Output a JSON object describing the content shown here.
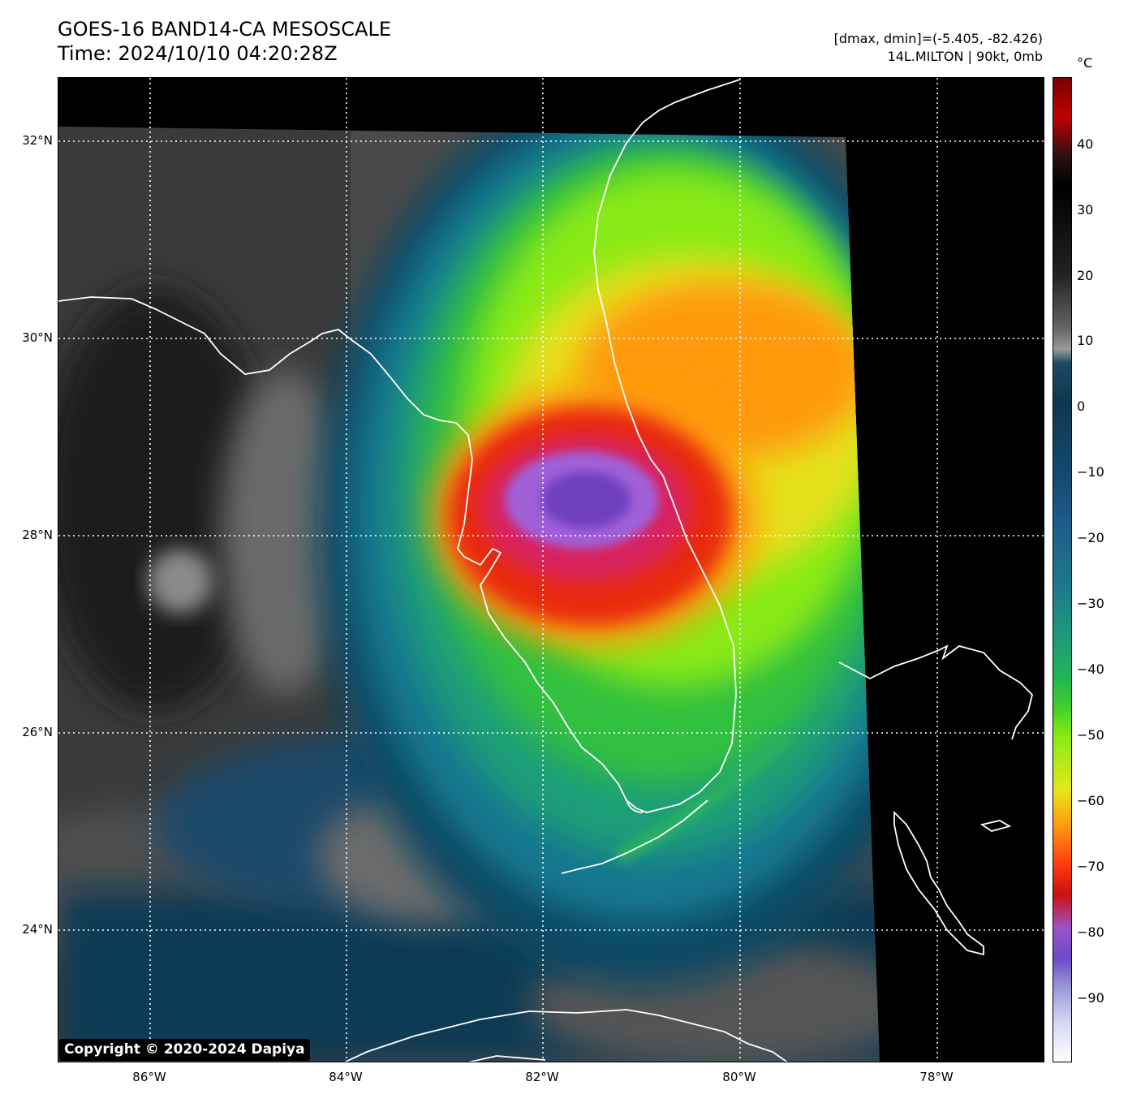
{
  "title": {
    "line1": "GOES-16 BAND14-CA MESOSCALE",
    "line2": "Time: 2024/10/10 04:20:28Z"
  },
  "info": {
    "line1": "[dmax, dmin]=(-5.405, -82.426)",
    "line2": "14L.MILTON | 90kt, 0mb"
  },
  "map": {
    "lat_labels": [
      "32°N",
      "30°N",
      "28°N",
      "26°N",
      "24°N"
    ],
    "lon_labels": [
      "86°W",
      "84°W",
      "82°W",
      "80°W",
      "78°W"
    ],
    "lat_range": [
      22.6,
      32.6
    ],
    "lon_range": [
      -87.0,
      -77.0
    ]
  },
  "colorbar": {
    "unit": "°C",
    "ticks": [
      "40",
      "30",
      "20",
      "10",
      "0",
      "−10",
      "−20",
      "−30",
      "−40",
      "−50",
      "−60",
      "−70",
      "−80",
      "−90"
    ]
  },
  "copyright": "Copyright © 2020-2024 Dapiya"
}
